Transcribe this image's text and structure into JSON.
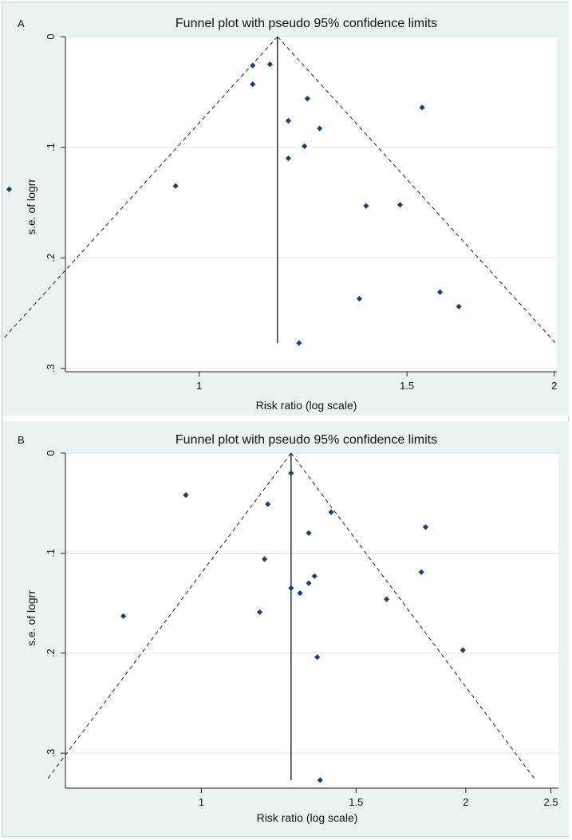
{
  "figure": {
    "background": "#eaf2f3",
    "plot_background": "#ffffff"
  },
  "chart_data": [
    {
      "type": "scatter",
      "panel_label": "A",
      "title": "Funnel plot with pseudo 95% confidence limits",
      "xlabel": "Risk ratio (log scale)",
      "ylabel": "s.e. of logrr",
      "x_scale": "log",
      "y_inverted": true,
      "xlim": [
        0.77,
        2.01
      ],
      "ylim": [
        0,
        0.303
      ],
      "xticks": [
        1,
        1.5,
        2
      ],
      "xtick_labels": [
        "1",
        "1.5",
        "2"
      ],
      "yticks": [
        0,
        0.1,
        0.2,
        0.3
      ],
      "ytick_labels": [
        "0",
        ".1",
        ".2",
        ".3"
      ],
      "grid": "horizontal",
      "pooled_rr": 1.165,
      "max_se": 0.277,
      "marker_color": "#1f3f6f",
      "points": [
        {
          "rr": 1.11,
          "se": 0.026
        },
        {
          "rr": 1.148,
          "se": 0.025
        },
        {
          "rr": 1.11,
          "se": 0.043
        },
        {
          "rr": 1.235,
          "se": 0.056
        },
        {
          "rr": 1.545,
          "se": 0.064
        },
        {
          "rr": 1.19,
          "se": 0.076
        },
        {
          "rr": 1.265,
          "se": 0.083
        },
        {
          "rr": 1.228,
          "se": 0.099
        },
        {
          "rr": 1.19,
          "se": 0.11
        },
        {
          "rr": 0.69,
          "se": 0.138
        },
        {
          "rr": 0.955,
          "se": 0.135
        },
        {
          "rr": 1.385,
          "se": 0.153
        },
        {
          "rr": 1.48,
          "se": 0.152
        },
        {
          "rr": 1.6,
          "se": 0.231
        },
        {
          "rr": 1.367,
          "se": 0.237
        },
        {
          "rr": 1.66,
          "se": 0.244
        },
        {
          "rr": 1.215,
          "se": 0.277
        }
      ]
    },
    {
      "type": "scatter",
      "panel_label": "B",
      "title": "Funnel plot with pseudo 95% confidence limits",
      "xlabel": "Risk ratio (log scale)",
      "ylabel": "s.e. of logrr",
      "x_scale": "log",
      "y_inverted": true,
      "xlim": [
        0.7,
        2.55
      ],
      "ylim": [
        0,
        0.335
      ],
      "xticks": [
        1,
        1.5,
        2,
        2.5
      ],
      "xtick_labels": [
        "1",
        "1.5",
        "2",
        "2.5"
      ],
      "yticks": [
        0,
        0.1,
        0.2,
        0.3
      ],
      "ytick_labels": [
        "0",
        ".1",
        ".2",
        ".3"
      ],
      "grid": "horizontal",
      "pooled_rr": 1.265,
      "max_se": 0.327,
      "marker_color": "#1f3f6f",
      "points": [
        {
          "rr": 1.265,
          "se": 0.02
        },
        {
          "rr": 0.96,
          "se": 0.042
        },
        {
          "rr": 1.19,
          "se": 0.051
        },
        {
          "rr": 1.405,
          "se": 0.059
        },
        {
          "rr": 1.8,
          "se": 0.074
        },
        {
          "rr": 1.325,
          "se": 0.08
        },
        {
          "rr": 1.18,
          "se": 0.106
        },
        {
          "rr": 1.78,
          "se": 0.119
        },
        {
          "rr": 1.345,
          "se": 0.123
        },
        {
          "rr": 1.325,
          "se": 0.13
        },
        {
          "rr": 1.265,
          "se": 0.135
        },
        {
          "rr": 1.295,
          "se": 0.14
        },
        {
          "rr": 1.625,
          "se": 0.146
        },
        {
          "rr": 1.165,
          "se": 0.159
        },
        {
          "rr": 0.815,
          "se": 0.163
        },
        {
          "rr": 1.985,
          "se": 0.197
        },
        {
          "rr": 1.355,
          "se": 0.204
        },
        {
          "rr": 1.365,
          "se": 0.327
        }
      ]
    }
  ]
}
